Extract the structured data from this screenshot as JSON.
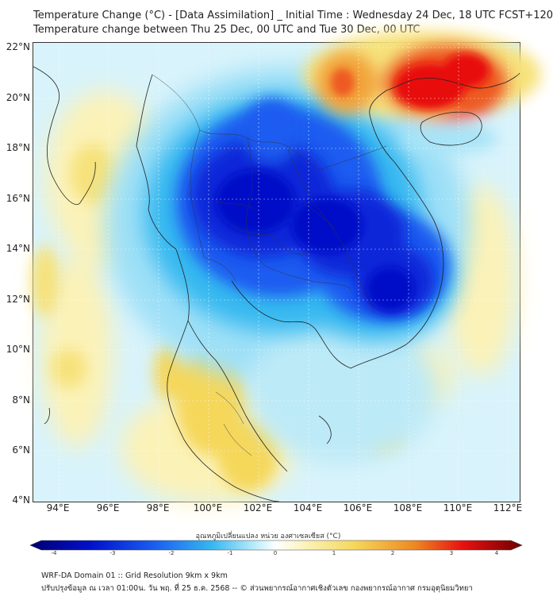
{
  "title": {
    "line1": "Temperature Change (°C) - [Data Assimilation] _ Initial Time : Wednesday 24 Dec, 18 UTC FCST+120",
    "line2": "Temperature change between Thu 25 Dec, 00 UTC and Tue 30 Dec, 00 UTC"
  },
  "map": {
    "lat_range": [
      4,
      22
    ],
    "lon_range": [
      93,
      112.5
    ],
    "lat_ticks": [
      "22°N",
      "20°N",
      "18°N",
      "16°N",
      "14°N",
      "12°N",
      "10°N",
      "8°N",
      "6°N",
      "4°N"
    ],
    "lon_ticks": [
      "94°E",
      "96°E",
      "98°E",
      "100°E",
      "102°E",
      "104°E",
      "106°E",
      "108°E",
      "110°E",
      "112°E"
    ],
    "field": "temperature change",
    "colors": {
      "background": "#d8f3fb",
      "strong_cold": "#0010c8",
      "cold": "#1a5cf0",
      "cool": "#35b8f0",
      "warm": "#f5d75a",
      "hot": "#ee5a22",
      "very_hot": "#e81010"
    }
  },
  "colorbar": {
    "title": "อุณหภูมิเปลี่ยนแปลง หน่วย องศาเซลเซียส (°C)",
    "ticks": [
      "-4",
      "-3",
      "-2",
      "-1",
      "0",
      "1",
      "2",
      "3",
      "4"
    ],
    "range": [
      -4,
      4
    ]
  },
  "footer": {
    "line1": "WRF-DA Domain 01 :: Grid Resolution 9km x 9km",
    "line2": "ปรับปรุงข้อมูล ณ เวลา 01:00น. วัน พฤ. ที่ 25 ธ.ค. 2568 -- © ส่วนพยากรณ์อากาศเชิงตัวเลข กองพยากรณ์อากาศ กรมอุตุนิยมวิทยา"
  }
}
